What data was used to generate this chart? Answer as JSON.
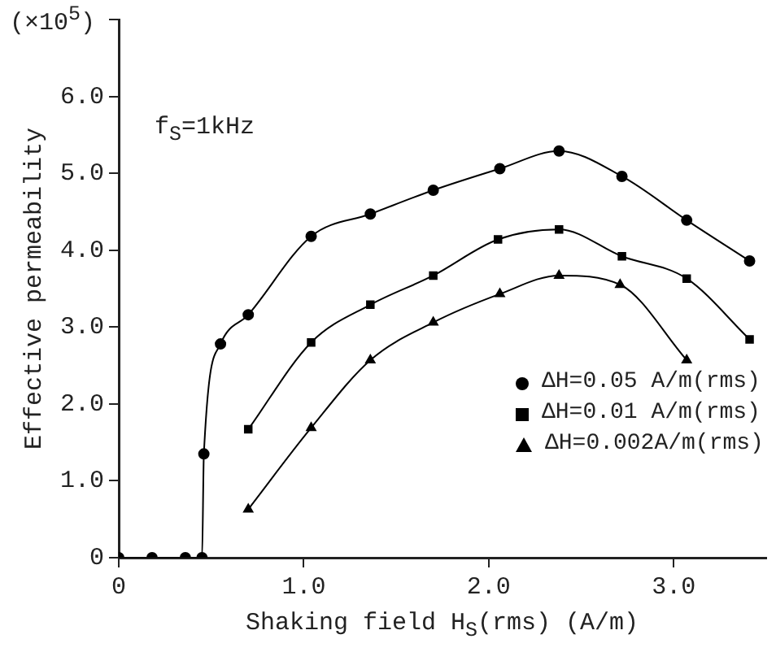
{
  "chart_data": {
    "type": "line",
    "xlabel": "Shaking field  H$_{S}$(rms)   (A/m)",
    "ylabel": "Effective permeability",
    "annotations": [
      "(×10$^{5}$)",
      "f$_{S}$=1kHz"
    ],
    "xlim": [
      0,
      3.5
    ],
    "xticks": [
      {
        "value": 0,
        "label": "0"
      },
      {
        "value": 1,
        "label": "1.0"
      },
      {
        "value": 2,
        "label": "2.0"
      },
      {
        "value": 3,
        "label": "3.0"
      }
    ],
    "ylim": [
      0,
      7
    ],
    "yticks": [
      {
        "value": 0,
        "label": "0"
      },
      {
        "value": 1,
        "label": "1.0"
      },
      {
        "value": 2,
        "label": "2.0"
      },
      {
        "value": 3,
        "label": "3.0"
      },
      {
        "value": 4,
        "label": "4.0"
      },
      {
        "value": 5,
        "label": "5.0"
      },
      {
        "value": 6,
        "label": "6.0"
      },
      {
        "value": 7,
        "label": null
      }
    ],
    "grid": false,
    "legend": "bottom right",
    "series": [
      {
        "name": "ΔH=0.05 A/m(rms)",
        "color": "#000000",
        "marker": "circle",
        "x": [
          0,
          0.18,
          0.36,
          0.45,
          0.46,
          0.55,
          0.7,
          1.04,
          1.36,
          1.7,
          2.06,
          2.38,
          2.72,
          3.07,
          3.41
        ],
        "values": [
          0,
          0,
          0,
          0,
          1.35,
          2.78,
          3.16,
          4.18,
          4.47,
          4.78,
          5.06,
          5.29,
          4.96,
          4.39,
          3.86
        ]
      },
      {
        "name": "ΔH=0.01 A/m(rms)",
        "color": "#000000",
        "marker": "square",
        "x": [
          0.7,
          1.04,
          1.36,
          1.7,
          2.05,
          2.38,
          2.72,
          3.07,
          3.41
        ],
        "values": [
          1.67,
          2.8,
          3.29,
          3.67,
          4.14,
          4.27,
          3.92,
          3.63,
          2.84
        ]
      },
      {
        "name": "ΔH=0.002A/m(rms)",
        "color": "#000000",
        "marker": "triangle",
        "x": [
          0.7,
          1.04,
          1.36,
          1.7,
          2.06,
          2.38,
          2.71,
          3.07
        ],
        "values": [
          0.63,
          1.69,
          2.57,
          3.06,
          3.43,
          3.67,
          3.55,
          2.57
        ]
      }
    ]
  }
}
